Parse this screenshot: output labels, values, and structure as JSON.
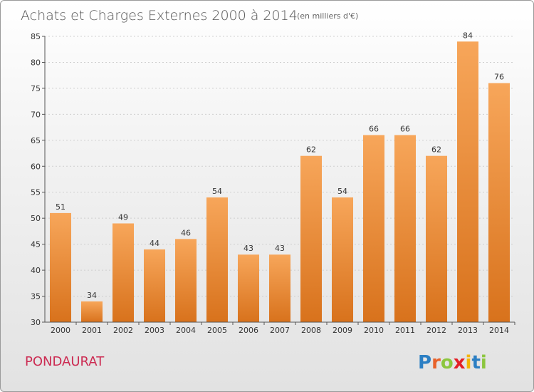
{
  "header": {
    "title": "Achats et Charges Externes 2000 à 2014",
    "unit": "(en milliers d'€)"
  },
  "footer": {
    "commune": "PONDAURAT",
    "logo_letters": [
      "P",
      "r",
      "o",
      "x",
      "i",
      "t",
      "i"
    ],
    "logo_colors": [
      "#2c7fc3",
      "#e8622a",
      "#8cc63e",
      "#e31f26",
      "#f4b400",
      "#2c7fc3",
      "#8cc63e"
    ]
  },
  "colors": {
    "bar_light": "#f7a65a",
    "bar_dark": "#d8721c"
  },
  "chart_data": {
    "type": "bar",
    "categories": [
      "2000",
      "2001",
      "2002",
      "2003",
      "2004",
      "2005",
      "2006",
      "2007",
      "2008",
      "2009",
      "2010",
      "2011",
      "2012",
      "2013",
      "2014"
    ],
    "values": [
      51,
      34,
      49,
      44,
      46,
      54,
      43,
      43,
      62,
      54,
      66,
      66,
      62,
      84,
      76
    ],
    "title": "Achats et Charges Externes 2000 à 2014",
    "subtitle": "(en milliers d'€)",
    "xlabel": "",
    "ylabel": "",
    "ylim": [
      30,
      85
    ],
    "yticks": [
      30,
      35,
      40,
      45,
      50,
      55,
      60,
      65,
      70,
      75,
      80,
      85
    ],
    "grid": true,
    "data_labels": true
  }
}
